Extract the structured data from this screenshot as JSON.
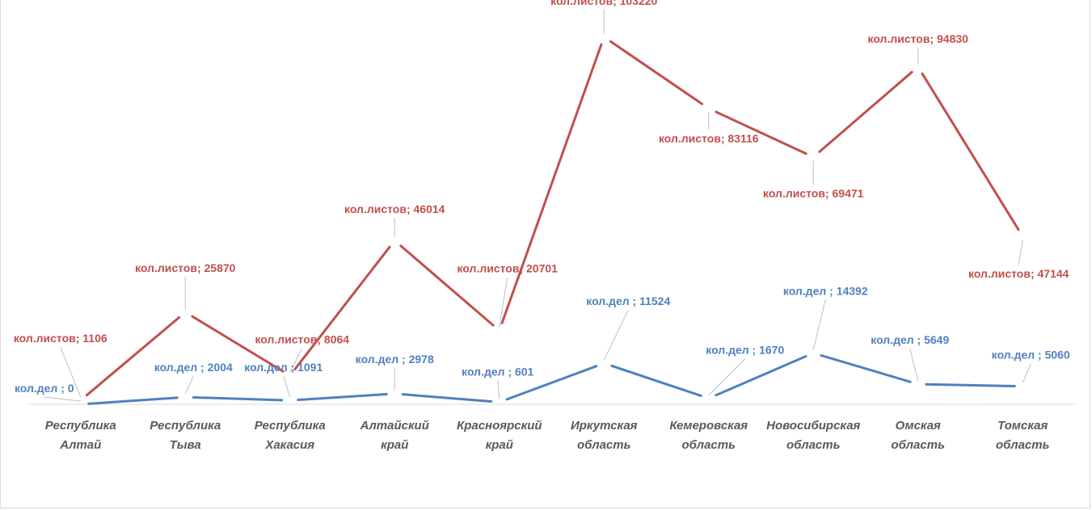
{
  "chart_data": {
    "type": "line",
    "title": "",
    "xlabel": "",
    "ylabel": "",
    "ylim": [
      0,
      110000
    ],
    "grid": false,
    "legend": "none",
    "categories": [
      [
        "Республика",
        "Алтай"
      ],
      [
        "Республика",
        "Тыва"
      ],
      [
        "Республика",
        "Хакасия"
      ],
      [
        "Алтайский",
        "край"
      ],
      [
        "Красноярский",
        "край"
      ],
      [
        "Иркутская",
        "область"
      ],
      [
        "Кемеровская",
        "область"
      ],
      [
        "Новосибирская",
        "область"
      ],
      [
        "Омская",
        "область"
      ],
      [
        "Томская",
        "область"
      ]
    ],
    "series": [
      {
        "label_prefix": "кол.листов",
        "label_sep": "; ",
        "color": "#c0504d",
        "values": [
          1106,
          25870,
          8064,
          46014,
          20701,
          103220,
          83116,
          69471,
          94830,
          47144
        ]
      },
      {
        "label_prefix": "кол.дел",
        "label_sep": " ; ",
        "color": "#4f81bd",
        "values": [
          0,
          2004,
          1091,
          2978,
          601,
          11524,
          1670,
          14392,
          5649,
          5060
        ]
      }
    ]
  }
}
